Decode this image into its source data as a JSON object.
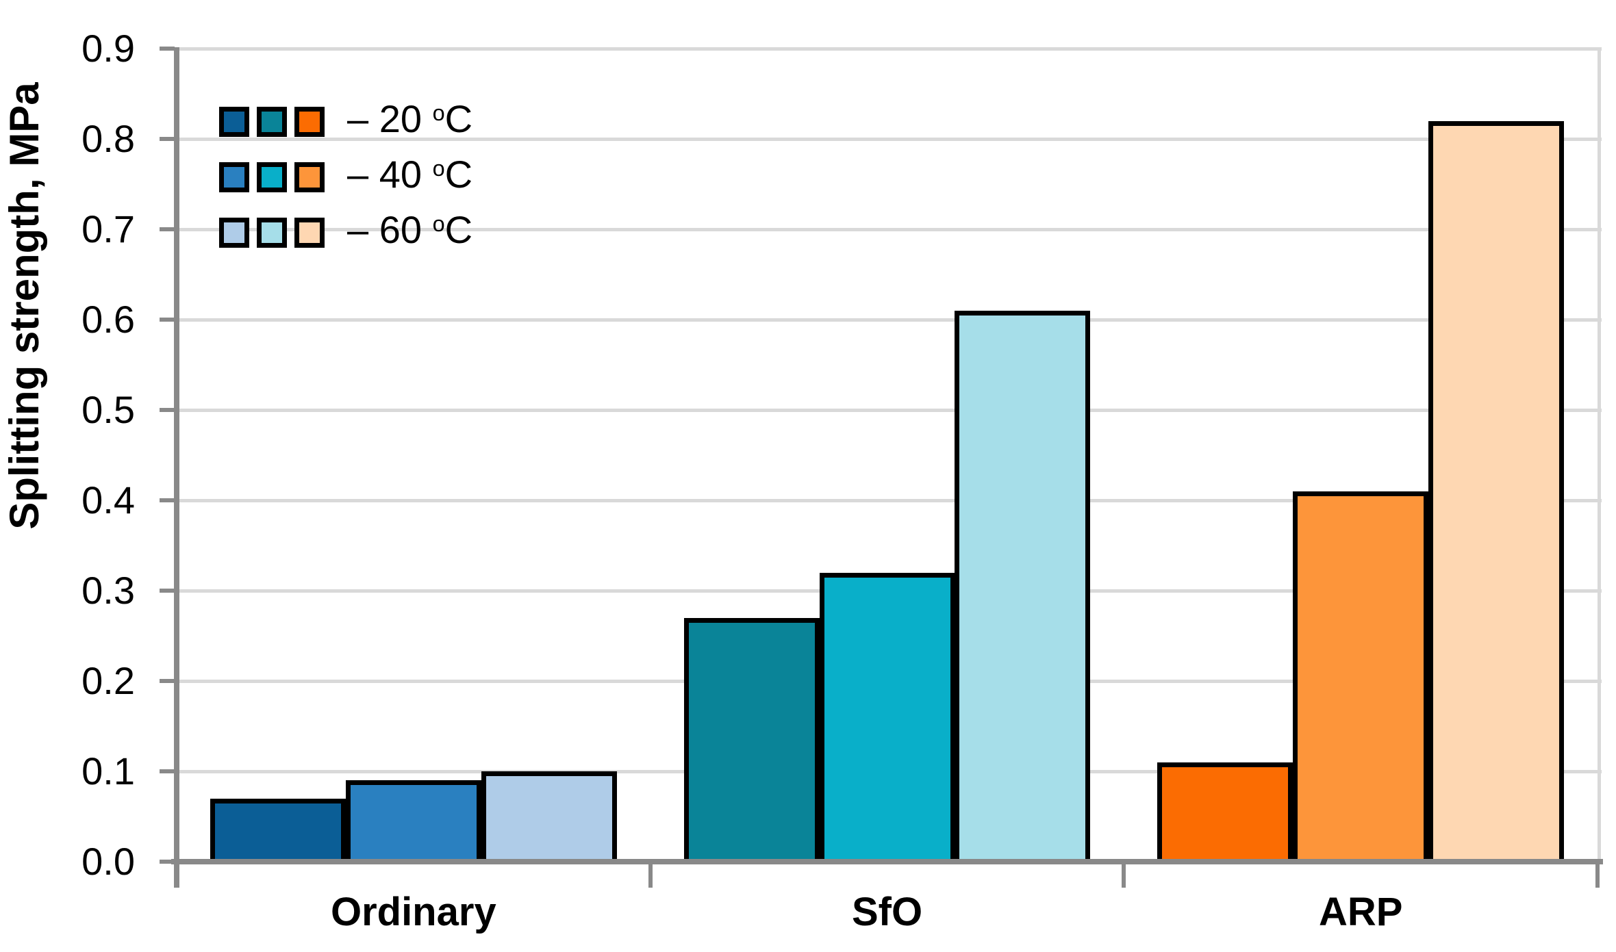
{
  "figure": {
    "background": "#FFFFFF",
    "axis_color": "#898989",
    "grid_color": "#D9D9D9",
    "bar_border_color": "#000000"
  },
  "chart_data": {
    "type": "bar",
    "title": "",
    "xlabel": "",
    "ylabel": "Splitting strength, MPa",
    "categories": [
      "Ordinary",
      "SfO",
      "ARP"
    ],
    "series": [
      {
        "name": "20 C",
        "legend": {
          "prefix": "– 20 ",
          "sup": "o",
          "suffix": "C"
        },
        "values": [
          0.07,
          0.27,
          0.11
        ],
        "colors": [
          "#0B5E96",
          "#0A8498",
          "#FB6C02"
        ]
      },
      {
        "name": "40 C",
        "legend": {
          "prefix": "– 40 ",
          "sup": "o",
          "suffix": "C"
        },
        "values": [
          0.09,
          0.32,
          0.41
        ],
        "colors": [
          "#2A80C0",
          "#09AFC9",
          "#FD953A"
        ]
      },
      {
        "name": "60 C",
        "legend": {
          "prefix": "– 60 ",
          "sup": "o",
          "suffix": "C"
        },
        "values": [
          0.1,
          0.61,
          0.82
        ],
        "colors": [
          "#AFCCE8",
          "#A6DEE9",
          "#FED7B2"
        ]
      }
    ],
    "ylim": [
      0,
      0.9
    ],
    "yticks": [
      "0.0",
      "0.1",
      "0.2",
      "0.3",
      "0.4",
      "0.5",
      "0.6",
      "0.7",
      "0.8",
      "0.9"
    ],
    "grid": true,
    "legend_position": "upper-left"
  }
}
